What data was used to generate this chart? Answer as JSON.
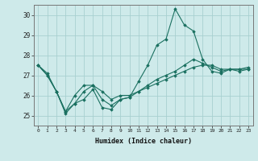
{
  "xlabel": "Humidex (Indice chaleur)",
  "ylabel": "",
  "bg_color": "#ceeaea",
  "grid_color": "#a8d0d0",
  "line_color": "#1a7060",
  "xlim": [
    -0.5,
    23.5
  ],
  "ylim": [
    24.5,
    30.5
  ],
  "yticks": [
    25,
    26,
    27,
    28,
    29,
    30
  ],
  "xticks": [
    0,
    1,
    2,
    3,
    4,
    5,
    6,
    7,
    8,
    9,
    10,
    11,
    12,
    13,
    14,
    15,
    16,
    17,
    18,
    19,
    20,
    21,
    22,
    23
  ],
  "series": [
    [
      27.5,
      27.1,
      26.2,
      25.1,
      25.6,
      25.8,
      26.3,
      25.4,
      25.3,
      25.8,
      25.9,
      26.7,
      27.5,
      28.5,
      28.8,
      30.3,
      29.5,
      29.2,
      27.8,
      27.2,
      27.1,
      27.3,
      27.2,
      27.3
    ],
    [
      27.5,
      27.0,
      26.2,
      25.2,
      26.0,
      26.5,
      26.5,
      26.2,
      25.8,
      26.0,
      26.0,
      26.2,
      26.4,
      26.6,
      26.8,
      27.0,
      27.2,
      27.4,
      27.5,
      27.5,
      27.3,
      27.3,
      27.3,
      27.4
    ],
    [
      27.5,
      27.0,
      26.2,
      25.2,
      25.6,
      26.2,
      26.5,
      25.8,
      25.5,
      25.8,
      25.9,
      26.2,
      26.5,
      26.8,
      27.0,
      27.2,
      27.5,
      27.8,
      27.6,
      27.4,
      27.2,
      27.3,
      27.3,
      27.3
    ]
  ]
}
